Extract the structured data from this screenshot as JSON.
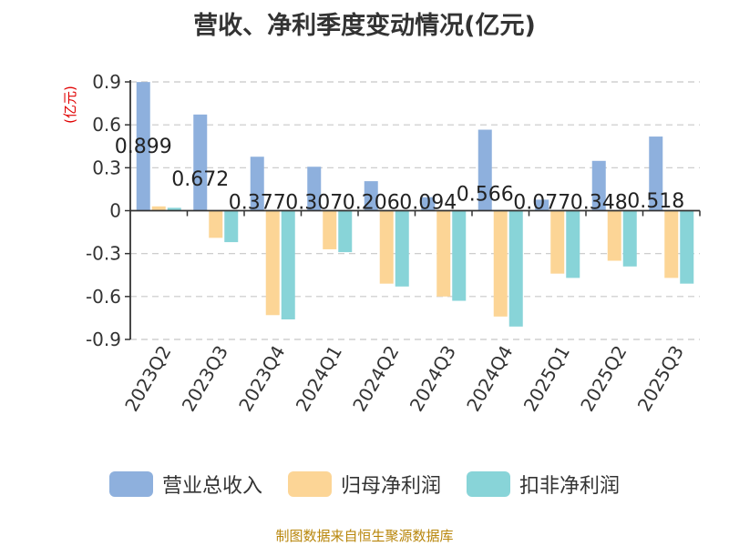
{
  "chart_data": {
    "type": "bar",
    "title": "营收、净利季度变动情况(亿元)",
    "ylabel": "(亿元)",
    "xlabel": "",
    "categories": [
      "2023Q2",
      "2023Q3",
      "2023Q4",
      "2024Q1",
      "2024Q2",
      "2024Q3",
      "2024Q4",
      "2025Q1",
      "2025Q2",
      "2025Q3"
    ],
    "series": [
      {
        "name": "营业总收入",
        "color": "#8eb0dd",
        "values": [
          0.899,
          0.672,
          0.377,
          0.307,
          0.206,
          0.094,
          0.566,
          0.077,
          0.348,
          0.518
        ],
        "data_labels": [
          "0.899",
          "0.672",
          "0.377",
          "0.307",
          "0.206",
          "0.094",
          "0.566",
          "0.077",
          "0.348",
          "0.518"
        ]
      },
      {
        "name": "归母净利润",
        "color": "#fcd596",
        "values": [
          0.03,
          -0.19,
          -0.73,
          -0.27,
          -0.51,
          -0.6,
          -0.74,
          -0.44,
          -0.35,
          -0.47
        ]
      },
      {
        "name": "扣非净利润",
        "color": "#88d4d8",
        "values": [
          0.02,
          -0.22,
          -0.76,
          -0.29,
          -0.53,
          -0.63,
          -0.81,
          -0.47,
          -0.39,
          -0.51
        ]
      }
    ],
    "ylim": [
      -0.9,
      0.9
    ],
    "yticks": [
      "0.9",
      "0.6",
      "0.3",
      "0",
      "-0.3",
      "-0.6",
      "-0.9"
    ],
    "ytick_values": [
      0.9,
      0.6,
      0.3,
      0,
      -0.3,
      -0.6,
      -0.9
    ],
    "grid": true,
    "legend_position": "bottom"
  },
  "source": "制图数据来自恒生聚源数据库"
}
